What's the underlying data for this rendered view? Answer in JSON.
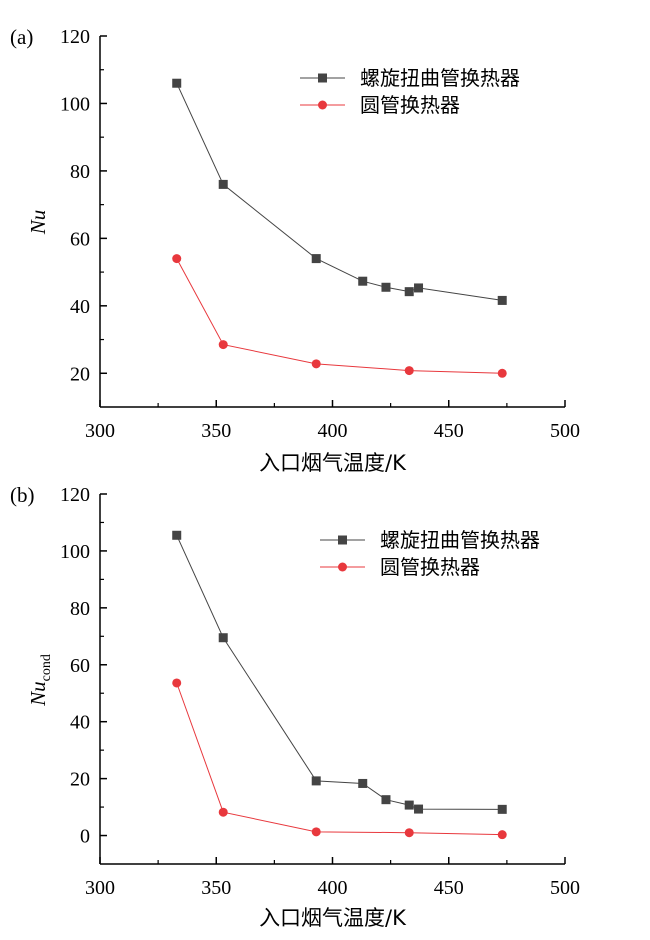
{
  "chart_data": [
    {
      "type": "line",
      "panel_label": "(a)",
      "xlabel": "入口烟气温度/K",
      "ylabel": "Nu",
      "ylabel_sub": "",
      "xlim": [
        300,
        500
      ],
      "ylim": [
        10,
        120
      ],
      "xticks": [
        300,
        350,
        400,
        450,
        500
      ],
      "yticks": [
        20,
        40,
        60,
        80,
        100,
        120
      ],
      "legend_position": "top-right",
      "series": [
        {
          "name": "螺旋扭曲管换热器",
          "color": "#444444",
          "marker": "square",
          "x": [
            333,
            353,
            393,
            413,
            423,
            433,
            437,
            473
          ],
          "y": [
            106,
            76,
            54,
            47.3,
            45.5,
            44.2,
            45.3,
            41.6
          ]
        },
        {
          "name": "圆管换热器",
          "color": "#e8383d",
          "marker": "circle",
          "x": [
            333,
            353,
            393,
            433,
            473
          ],
          "y": [
            54,
            28.5,
            22.8,
            20.8,
            20
          ]
        }
      ]
    },
    {
      "type": "line",
      "panel_label": "(b)",
      "xlabel": "入口烟气温度/K",
      "ylabel": "Nu",
      "ylabel_sub": "cond",
      "xlim": [
        300,
        500
      ],
      "ylim": [
        -10,
        120
      ],
      "xticks": [
        300,
        350,
        400,
        450,
        500
      ],
      "yticks": [
        0,
        20,
        40,
        60,
        80,
        100,
        120
      ],
      "legend_position": "top-right",
      "series": [
        {
          "name": "螺旋扭曲管换热器",
          "color": "#444444",
          "marker": "square",
          "x": [
            333,
            353,
            393,
            413,
            423,
            433,
            437,
            473
          ],
          "y": [
            105.5,
            69.5,
            19.2,
            18.3,
            12.6,
            10.7,
            9.3,
            9.2
          ]
        },
        {
          "name": "圆管换热器",
          "color": "#e8383d",
          "marker": "circle",
          "x": [
            333,
            353,
            393,
            433,
            473
          ],
          "y": [
            53.6,
            8.2,
            1.3,
            1.0,
            0.3
          ]
        }
      ]
    }
  ]
}
